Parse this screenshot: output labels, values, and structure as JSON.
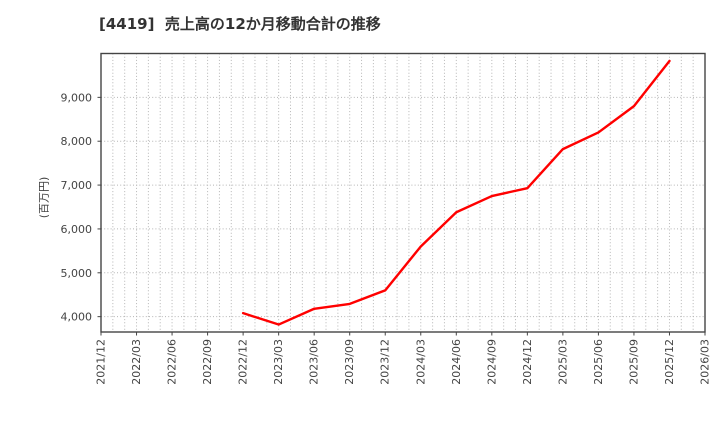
{
  "chart": {
    "title": "[4419]  売上高の12か月移動合計の推移",
    "y_axis_title": "(百万円)"
  },
  "chart_data": {
    "type": "line",
    "title": "売上高の12か月移動合計の推移",
    "company_code": "4419",
    "ylabel": "(百万円)",
    "x_tick_labels": [
      "2021/12",
      "2022/03",
      "2022/06",
      "2022/09",
      "2022/12",
      "2023/03",
      "2023/06",
      "2023/09",
      "2023/12",
      "2024/03",
      "2024/06",
      "2024/09",
      "2024/12",
      "2025/03",
      "2025/06",
      "2025/09",
      "2025/12",
      "2026/03"
    ],
    "y_ticks": [
      4000,
      5000,
      6000,
      7000,
      8000,
      9000
    ],
    "y_tick_labels": [
      "4,000",
      "5,000",
      "6,000",
      "7,000",
      "8,000",
      "9,000"
    ],
    "ylim": [
      3650,
      10000
    ],
    "x_range": [
      "2021/12",
      "2026/03"
    ],
    "grid": true,
    "vertical_grid_interval": "monthly",
    "legend_position": "none",
    "series": [
      {
        "name": "売上高の12か月移動合計",
        "color": "#ff0000",
        "x": [
          "2022/12",
          "2023/03",
          "2023/06",
          "2023/09",
          "2023/12",
          "2024/03",
          "2024/06",
          "2024/09",
          "2024/12",
          "2025/03",
          "2025/06",
          "2025/09",
          "2025/12"
        ],
        "values": [
          4080,
          3820,
          4180,
          4290,
          4600,
          5600,
          6380,
          6750,
          6930,
          7820,
          8200,
          8800,
          9830
        ]
      }
    ]
  },
  "colors": {
    "line": "#ff0000",
    "title_text": "#333333",
    "axis_text": "#444444",
    "grid": "#b5b5b5",
    "border": "#444444",
    "background": "#ffffff"
  }
}
